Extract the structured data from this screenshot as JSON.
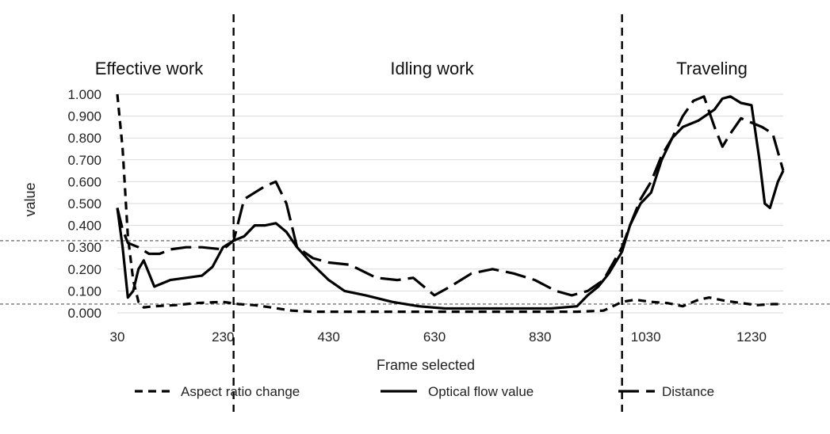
{
  "chart_data": {
    "type": "line",
    "xlabel": "Frame selected",
    "ylabel": "value",
    "xlim": [
      30,
      1290
    ],
    "ylim": [
      0,
      1
    ],
    "x_ticks": [
      30,
      230,
      430,
      630,
      830,
      1030,
      1230
    ],
    "y_ticks": [
      "0.000",
      "0.100",
      "0.200",
      "0.300",
      "0.400",
      "0.500",
      "0.600",
      "0.700",
      "0.800",
      "0.900",
      "1.000"
    ],
    "grid": "horizontal",
    "legend_position": "bottom",
    "regions": [
      {
        "label": "Effective work",
        "x_start": 30,
        "x_end": 250
      },
      {
        "label": "Idling work",
        "x_start": 250,
        "x_end": 985
      },
      {
        "label": "Traveling",
        "x_start": 985,
        "x_end": 1290
      }
    ],
    "dividers_x": [
      250,
      985
    ],
    "thresholds_y": [
      0.33,
      0.04
    ],
    "series": [
      {
        "name": "Aspect ratio change",
        "style": "short-dash",
        "points": [
          [
            30,
            1.0
          ],
          [
            40,
            0.75
          ],
          [
            50,
            0.35
          ],
          [
            60,
            0.15
          ],
          [
            70,
            0.05
          ],
          [
            80,
            0.025
          ],
          [
            100,
            0.03
          ],
          [
            140,
            0.035
          ],
          [
            180,
            0.045
          ],
          [
            230,
            0.05
          ],
          [
            260,
            0.04
          ],
          [
            290,
            0.035
          ],
          [
            320,
            0.025
          ],
          [
            360,
            0.01
          ],
          [
            400,
            0.005
          ],
          [
            500,
            0.005
          ],
          [
            600,
            0.005
          ],
          [
            700,
            0.005
          ],
          [
            800,
            0.005
          ],
          [
            900,
            0.005
          ],
          [
            950,
            0.01
          ],
          [
            985,
            0.05
          ],
          [
            1010,
            0.06
          ],
          [
            1040,
            0.05
          ],
          [
            1070,
            0.045
          ],
          [
            1100,
            0.03
          ],
          [
            1130,
            0.06
          ],
          [
            1150,
            0.07
          ],
          [
            1180,
            0.055
          ],
          [
            1210,
            0.045
          ],
          [
            1240,
            0.035
          ],
          [
            1270,
            0.04
          ],
          [
            1290,
            0.04
          ]
        ]
      },
      {
        "name": "Optical flow value",
        "style": "solid",
        "points": [
          [
            30,
            0.48
          ],
          [
            40,
            0.3
          ],
          [
            50,
            0.07
          ],
          [
            60,
            0.1
          ],
          [
            70,
            0.2
          ],
          [
            80,
            0.24
          ],
          [
            90,
            0.18
          ],
          [
            100,
            0.12
          ],
          [
            130,
            0.15
          ],
          [
            160,
            0.16
          ],
          [
            190,
            0.17
          ],
          [
            210,
            0.21
          ],
          [
            230,
            0.3
          ],
          [
            250,
            0.33
          ],
          [
            270,
            0.35
          ],
          [
            290,
            0.4
          ],
          [
            310,
            0.4
          ],
          [
            330,
            0.41
          ],
          [
            350,
            0.37
          ],
          [
            370,
            0.3
          ],
          [
            400,
            0.22
          ],
          [
            430,
            0.15
          ],
          [
            460,
            0.1
          ],
          [
            500,
            0.08
          ],
          [
            550,
            0.05
          ],
          [
            600,
            0.03
          ],
          [
            650,
            0.02
          ],
          [
            700,
            0.02
          ],
          [
            750,
            0.02
          ],
          [
            800,
            0.02
          ],
          [
            850,
            0.02
          ],
          [
            900,
            0.03
          ],
          [
            920,
            0.08
          ],
          [
            940,
            0.12
          ],
          [
            960,
            0.18
          ],
          [
            985,
            0.28
          ],
          [
            1000,
            0.4
          ],
          [
            1020,
            0.5
          ],
          [
            1040,
            0.55
          ],
          [
            1060,
            0.7
          ],
          [
            1080,
            0.8
          ],
          [
            1100,
            0.85
          ],
          [
            1130,
            0.88
          ],
          [
            1160,
            0.93
          ],
          [
            1175,
            0.98
          ],
          [
            1190,
            0.99
          ],
          [
            1210,
            0.96
          ],
          [
            1230,
            0.95
          ],
          [
            1245,
            0.7
          ],
          [
            1255,
            0.5
          ],
          [
            1265,
            0.48
          ],
          [
            1280,
            0.6
          ],
          [
            1290,
            0.65
          ]
        ]
      },
      {
        "name": "Distance",
        "style": "long-dash",
        "points": [
          [
            30,
            0.48
          ],
          [
            40,
            0.38
          ],
          [
            50,
            0.32
          ],
          [
            70,
            0.3
          ],
          [
            90,
            0.27
          ],
          [
            110,
            0.27
          ],
          [
            130,
            0.29
          ],
          [
            160,
            0.3
          ],
          [
            190,
            0.3
          ],
          [
            230,
            0.29
          ],
          [
            250,
            0.33
          ],
          [
            270,
            0.52
          ],
          [
            290,
            0.55
          ],
          [
            310,
            0.58
          ],
          [
            330,
            0.6
          ],
          [
            350,
            0.5
          ],
          [
            370,
            0.3
          ],
          [
            400,
            0.25
          ],
          [
            430,
            0.23
          ],
          [
            470,
            0.22
          ],
          [
            520,
            0.16
          ],
          [
            560,
            0.15
          ],
          [
            590,
            0.16
          ],
          [
            630,
            0.08
          ],
          [
            660,
            0.12
          ],
          [
            700,
            0.18
          ],
          [
            740,
            0.2
          ],
          [
            780,
            0.18
          ],
          [
            820,
            0.15
          ],
          [
            860,
            0.1
          ],
          [
            890,
            0.08
          ],
          [
            920,
            0.1
          ],
          [
            950,
            0.15
          ],
          [
            985,
            0.3
          ],
          [
            1000,
            0.4
          ],
          [
            1020,
            0.52
          ],
          [
            1040,
            0.6
          ],
          [
            1060,
            0.72
          ],
          [
            1080,
            0.8
          ],
          [
            1100,
            0.9
          ],
          [
            1120,
            0.97
          ],
          [
            1140,
            0.99
          ],
          [
            1160,
            0.85
          ],
          [
            1175,
            0.76
          ],
          [
            1190,
            0.82
          ],
          [
            1210,
            0.89
          ],
          [
            1230,
            0.87
          ],
          [
            1250,
            0.85
          ],
          [
            1270,
            0.82
          ],
          [
            1290,
            0.65
          ]
        ]
      }
    ]
  }
}
